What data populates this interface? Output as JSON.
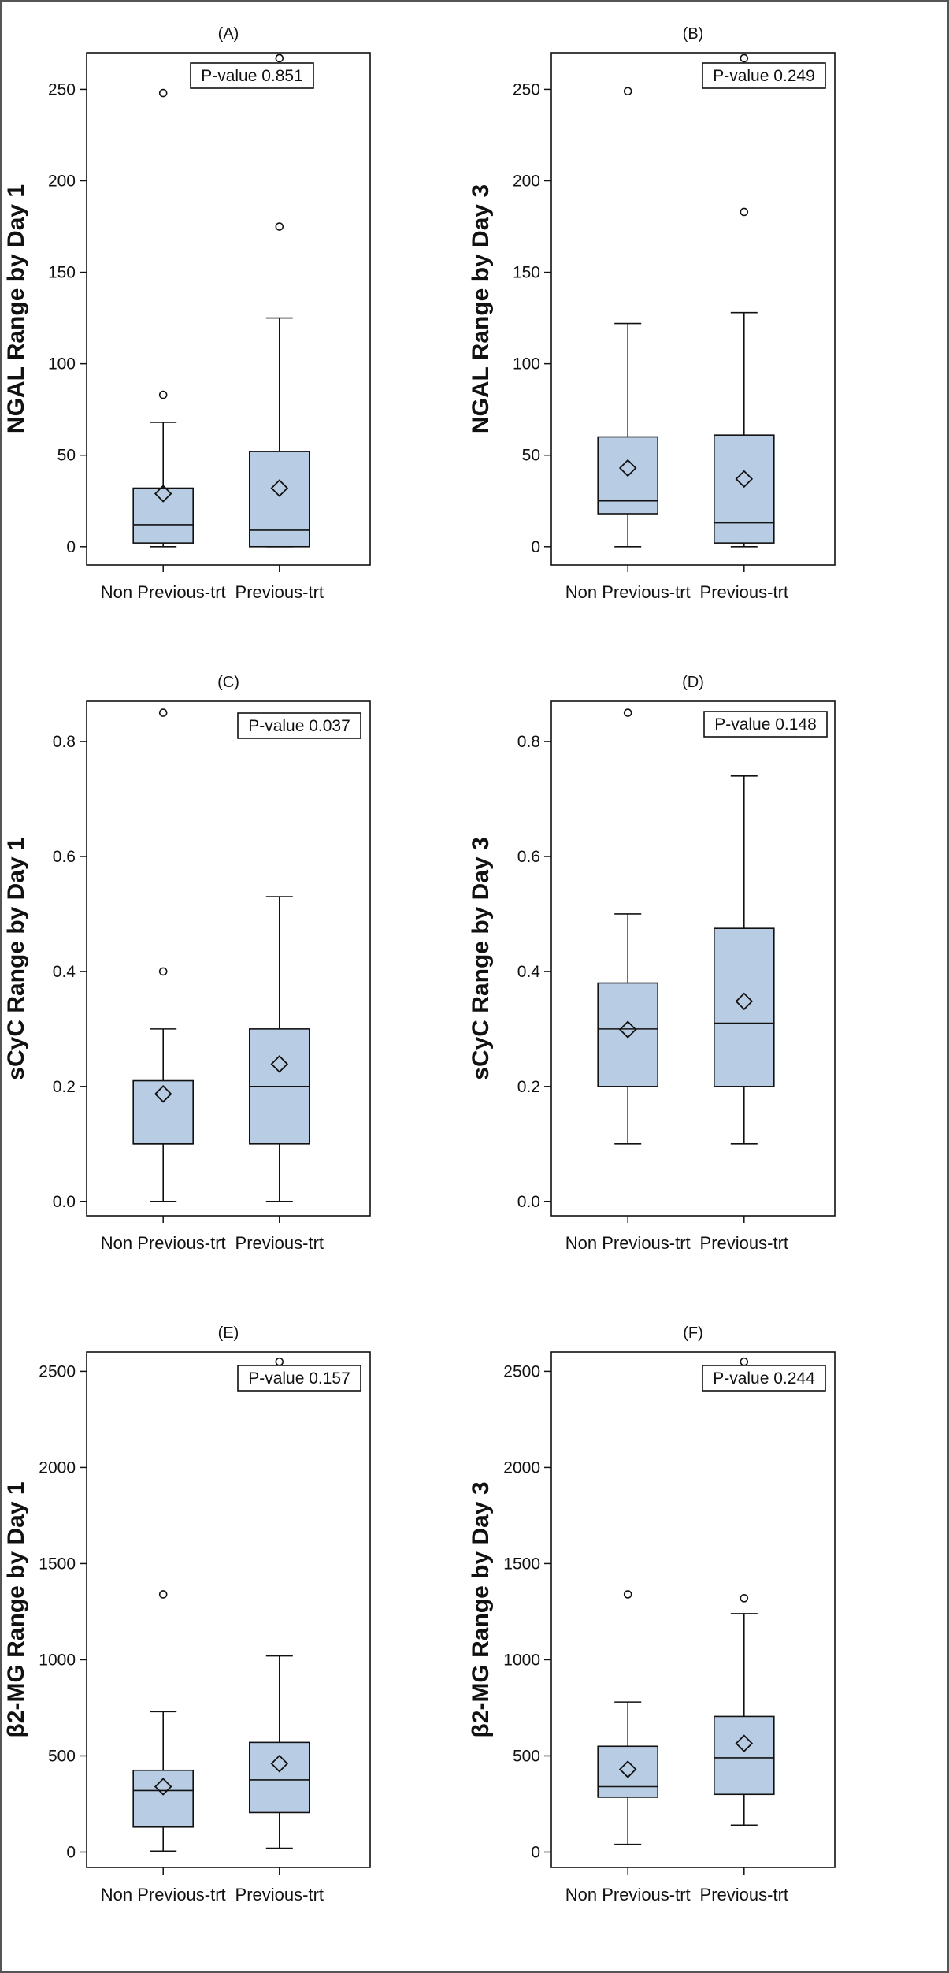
{
  "chart_data": [
    {
      "type": "boxplot",
      "panel": "(A)",
      "ylabel": "NGAL Range by Day 1",
      "categories": [
        "Non Previous-trt",
        "Previous-trt"
      ],
      "annotation": "P-value 0.851",
      "ylim": [
        -10,
        270
      ],
      "yticks": [
        0,
        50,
        100,
        150,
        200,
        250
      ],
      "tick_labels": [
        "0",
        "50",
        "100",
        "150",
        "200",
        "250"
      ],
      "boxes": [
        {
          "whisker_low": 0,
          "q1": 2,
          "median": 12,
          "q3": 32,
          "whisker_high": 68,
          "mean": 29,
          "outliers": [
            83,
            248
          ]
        },
        {
          "whisker_low": 0,
          "q1": 0,
          "median": 9,
          "q3": 52,
          "whisker_high": 125,
          "mean": 32,
          "outliers": [
            175,
            267
          ]
        }
      ]
    },
    {
      "type": "boxplot",
      "panel": "(B)",
      "ylabel": "NGAL Range by Day 3",
      "categories": [
        "Non Previous-trt",
        "Previous-trt"
      ],
      "annotation": "P-value 0.249",
      "ylim": [
        -10,
        270
      ],
      "yticks": [
        0,
        50,
        100,
        150,
        200,
        250
      ],
      "tick_labels": [
        "0",
        "50",
        "100",
        "150",
        "200",
        "250"
      ],
      "boxes": [
        {
          "whisker_low": 0,
          "q1": 18,
          "median": 25,
          "q3": 60,
          "whisker_high": 122,
          "mean": 43,
          "outliers": [
            249
          ]
        },
        {
          "whisker_low": 0,
          "q1": 2,
          "median": 13,
          "q3": 61,
          "whisker_high": 128,
          "mean": 37,
          "outliers": [
            183,
            267
          ]
        }
      ]
    },
    {
      "type": "boxplot",
      "panel": "(C)",
      "ylabel": "sCyC Range by Day 1",
      "categories": [
        "Non Previous-trt",
        "Previous-trt"
      ],
      "annotation": "P-value 0.037",
      "ylim": [
        -0.025,
        0.87
      ],
      "yticks": [
        0,
        0.2,
        0.4,
        0.6,
        0.8
      ],
      "tick_labels": [
        "0.0",
        "0.2",
        "0.4",
        "0.6",
        "0.8"
      ],
      "boxes": [
        {
          "whisker_low": 0,
          "q1": 0.1,
          "median": 0.1,
          "q3": 0.21,
          "whisker_high": 0.3,
          "mean": 0.187,
          "outliers": [
            0.4,
            0.85
          ]
        },
        {
          "whisker_low": 0,
          "q1": 0.1,
          "median": 0.2,
          "q3": 0.3,
          "whisker_high": 0.53,
          "mean": 0.239,
          "outliers": []
        }
      ]
    },
    {
      "type": "boxplot",
      "panel": "(D)",
      "ylabel": "sCyC Range by Day 3",
      "categories": [
        "Non Previous-trt",
        "Previous-trt"
      ],
      "annotation": "P-value 0.148",
      "ylim": [
        -0.025,
        0.87
      ],
      "yticks": [
        0,
        0.2,
        0.4,
        0.6,
        0.8
      ],
      "tick_labels": [
        "0.0",
        "0.2",
        "0.4",
        "0.6",
        "0.8"
      ],
      "boxes": [
        {
          "whisker_low": 0.1,
          "q1": 0.2,
          "median": 0.3,
          "q3": 0.38,
          "whisker_high": 0.5,
          "mean": 0.299,
          "outliers": [
            0.85
          ]
        },
        {
          "whisker_low": 0.1,
          "q1": 0.2,
          "median": 0.31,
          "q3": 0.475,
          "whisker_high": 0.74,
          "mean": 0.348,
          "outliers": []
        }
      ]
    },
    {
      "type": "boxplot",
      "panel": "(E)",
      "ylabel": "β2-MG Range by Day 1",
      "categories": [
        "Non Previous-trt",
        "Previous-trt"
      ],
      "annotation": "P-value 0.157",
      "ylim": [
        -80,
        2600
      ],
      "yticks": [
        0,
        500,
        1000,
        1500,
        2000,
        2500
      ],
      "tick_labels": [
        "0",
        "500",
        "1000",
        "1500",
        "2000",
        "2500"
      ],
      "boxes": [
        {
          "whisker_low": 5,
          "q1": 130,
          "median": 320,
          "q3": 425,
          "whisker_high": 730,
          "mean": 340,
          "outliers": [
            1340
          ]
        },
        {
          "whisker_low": 20,
          "q1": 205,
          "median": 375,
          "q3": 570,
          "whisker_high": 1020,
          "mean": 460,
          "outliers": [
            2550
          ]
        }
      ]
    },
    {
      "type": "boxplot",
      "panel": "(F)",
      "ylabel": "β2-MG Range by Day 3",
      "categories": [
        "Non Previous-trt",
        "Previous-trt"
      ],
      "annotation": "P-value 0.244",
      "ylim": [
        -80,
        2600
      ],
      "yticks": [
        0,
        500,
        1000,
        1500,
        2000,
        2500
      ],
      "tick_labels": [
        "0",
        "500",
        "1000",
        "1500",
        "2000",
        "2500"
      ],
      "boxes": [
        {
          "whisker_low": 40,
          "q1": 285,
          "median": 340,
          "q3": 550,
          "whisker_high": 780,
          "mean": 430,
          "outliers": [
            1340
          ]
        },
        {
          "whisker_low": 140,
          "q1": 300,
          "median": 490,
          "q3": 705,
          "whisker_high": 1240,
          "mean": 565,
          "outliers": [
            1320,
            2550
          ]
        }
      ]
    }
  ],
  "style": {
    "box_fill": "#b8cce4",
    "line_color": "#111111",
    "frame_color": "#111111",
    "background": "#ffffff"
  }
}
